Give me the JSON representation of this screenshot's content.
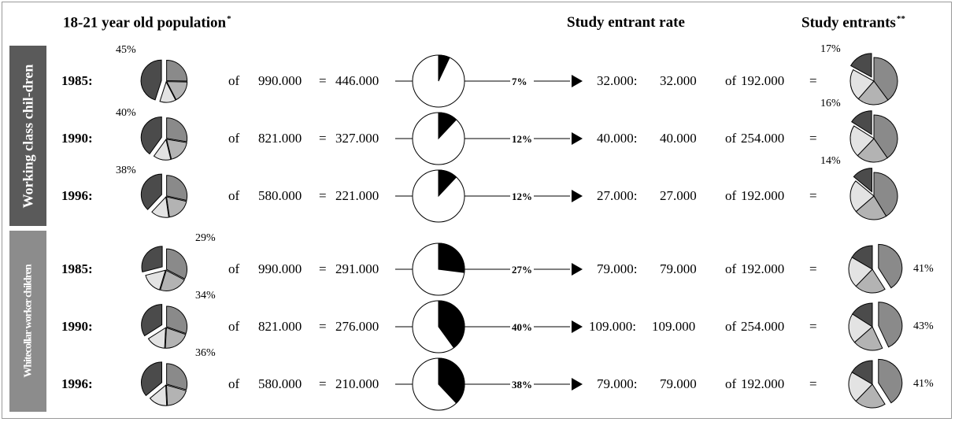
{
  "headers": {
    "population": "18-21 year old population",
    "population_mark": "*",
    "rate": "Study entrant rate",
    "entrants": "Study entrants",
    "entrants_mark": "**"
  },
  "groups": [
    {
      "label": "Working class chil-dren",
      "color": "#5a5a5a"
    },
    {
      "label": "Whitecollar worker children",
      "color": "#8c8c8c"
    }
  ],
  "colors": {
    "focus_slice": "#4b4b4b",
    "slice_2": "#8a8a8a",
    "slice_3": "#b3b3b3",
    "slice_4": "#e3e3e3",
    "entrant_slice": "#000000",
    "outline": "#000000"
  },
  "rows": [
    {
      "year": "1985:",
      "share_label": "45%",
      "of": "of",
      "population": "990.000",
      "eq": "=",
      "group_pop": "446.000",
      "rate": "7%",
      "entrants": "32.000:",
      "entrants_of": "32.000",
      "of2": "of",
      "total": "192.000",
      "eq2": "=",
      "result_label": "17%"
    },
    {
      "year": "1990:",
      "share_label": "40%",
      "of": "of",
      "population": "821.000",
      "eq": "=",
      "group_pop": "327.000",
      "rate": "12%",
      "entrants": "40.000:",
      "entrants_of": "40.000",
      "of2": "of",
      "total": "254.000",
      "eq2": "=",
      "result_label": "16%"
    },
    {
      "year": "1996:",
      "share_label": "38%",
      "of": "of",
      "population": "580.000",
      "eq": "=",
      "group_pop": "221.000",
      "rate": "12%",
      "entrants": "27.000:",
      "entrants_of": "27.000",
      "of2": "of",
      "total": "192.000",
      "eq2": "=",
      "result_label": "14%"
    },
    {
      "year": "1985:",
      "share_label": "29%",
      "of": "of",
      "population": "990.000",
      "eq": "=",
      "group_pop": "291.000",
      "rate": "27%",
      "entrants": "79.000:",
      "entrants_of": "79.000",
      "of2": "of",
      "total": "192.000",
      "eq2": "=",
      "result_label": "41%"
    },
    {
      "year": "1990:",
      "share_label": "34%",
      "of": "of",
      "population": "821.000",
      "eq": "=",
      "group_pop": "276.000",
      "rate": "40%",
      "entrants": "109.000:",
      "entrants_of": "109.000",
      "of2": "of",
      "total": "254.000",
      "eq2": "=",
      "result_label": "43%"
    },
    {
      "year": "1996:",
      "share_label": "36%",
      "of": "of",
      "population": "580.000",
      "eq": "=",
      "group_pop": "210.000",
      "rate": "38%",
      "entrants": "79.000:",
      "entrants_of": "79.000",
      "of2": "of",
      "total": "192.000",
      "eq2": "=",
      "result_label": "41%"
    }
  ],
  "chart_data": {
    "type": "pie",
    "series": [
      {
        "name": "18-21 year old population",
        "focus_share": [
          45,
          40,
          38,
          29,
          34,
          36
        ],
        "population": [
          990000,
          821000,
          580000,
          990000,
          821000,
          580000
        ],
        "group_population": [
          446000,
          327000,
          221000,
          291000,
          276000,
          210000
        ]
      },
      {
        "name": "Study entrant rate",
        "values": [
          7,
          12,
          12,
          27,
          40,
          38
        ]
      },
      {
        "name": "Study entrants",
        "entrants": [
          32000,
          40000,
          27000,
          79000,
          109000,
          79000
        ],
        "total": [
          192000,
          254000,
          192000,
          192000,
          254000,
          192000
        ],
        "share": [
          17,
          16,
          14,
          41,
          43,
          41
        ]
      }
    ]
  }
}
